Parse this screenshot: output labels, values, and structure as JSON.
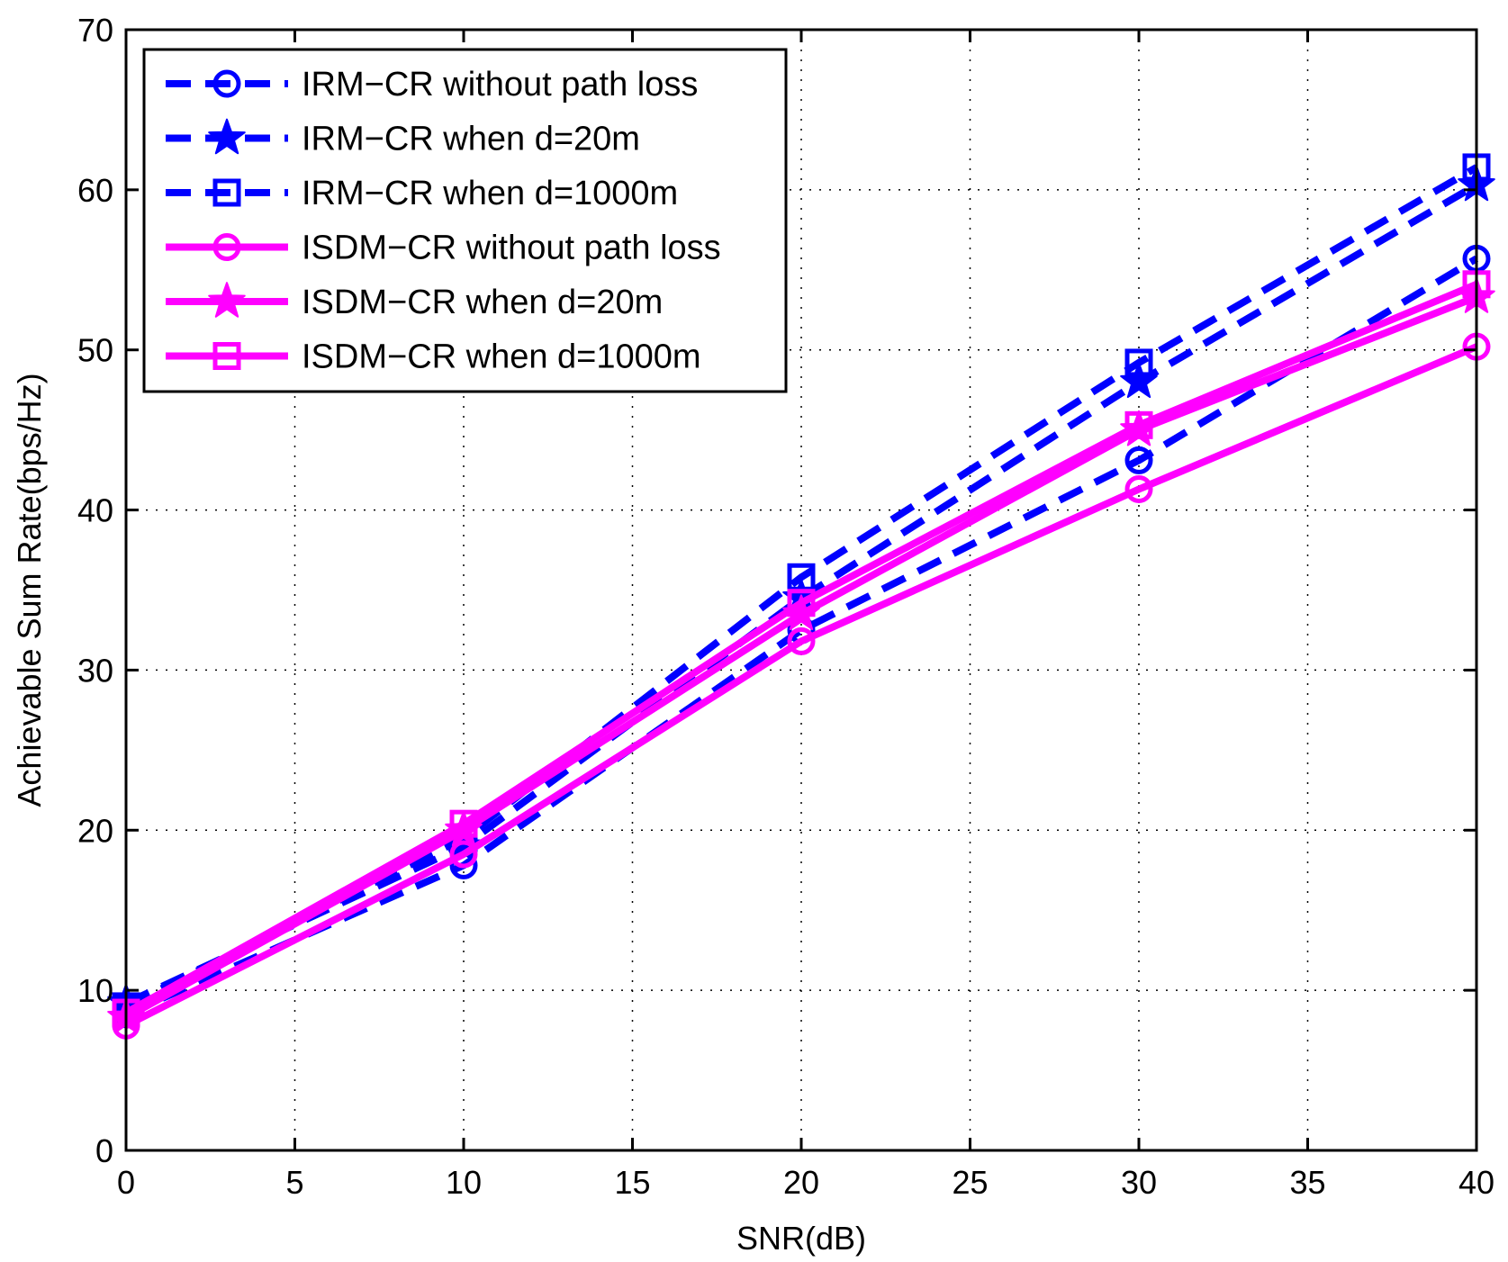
{
  "chart_data": {
    "type": "line",
    "title": "",
    "xlabel": "SNR(dB)",
    "ylabel": "Achievable Sum Rate(bps/Hz)",
    "xlim": [
      0,
      40
    ],
    "ylim": [
      0,
      70
    ],
    "xticks": [
      0,
      5,
      10,
      15,
      20,
      25,
      30,
      35,
      40
    ],
    "yticks": [
      0,
      10,
      20,
      30,
      40,
      50,
      60,
      70
    ],
    "grid": true,
    "legend_position": "top-left",
    "x": [
      0,
      10,
      20,
      30,
      40
    ],
    "series": [
      {
        "name": "IRM−CR without path loss",
        "color": "#0000ff",
        "dash": "dashed",
        "marker": "circle",
        "values": [
          8.5,
          17.8,
          32.5,
          43.1,
          55.7
        ]
      },
      {
        "name": "IRM−CR when d=20m",
        "color": "#0000ff",
        "dash": "dashed",
        "marker": "star",
        "values": [
          9.2,
          19.0,
          34.5,
          48.0,
          60.3
        ]
      },
      {
        "name": "IRM−CR when d=1000m",
        "color": "#0000ff",
        "dash": "dashed",
        "marker": "square",
        "values": [
          9.0,
          19.5,
          35.8,
          49.2,
          61.4
        ]
      },
      {
        "name": "ISDM−CR without path loss",
        "color": "#ff00ff",
        "dash": "solid",
        "marker": "circle",
        "values": [
          7.8,
          18.5,
          31.8,
          41.3,
          50.2
        ]
      },
      {
        "name": "ISDM−CR when d=20m",
        "color": "#ff00ff",
        "dash": "solid",
        "marker": "star",
        "values": [
          8.3,
          20.0,
          33.5,
          45.0,
          53.3
        ]
      },
      {
        "name": "ISDM−CR when d=1000m",
        "color": "#ff00ff",
        "dash": "solid",
        "marker": "square",
        "values": [
          8.6,
          20.4,
          34.2,
          45.3,
          54.1
        ]
      }
    ]
  }
}
